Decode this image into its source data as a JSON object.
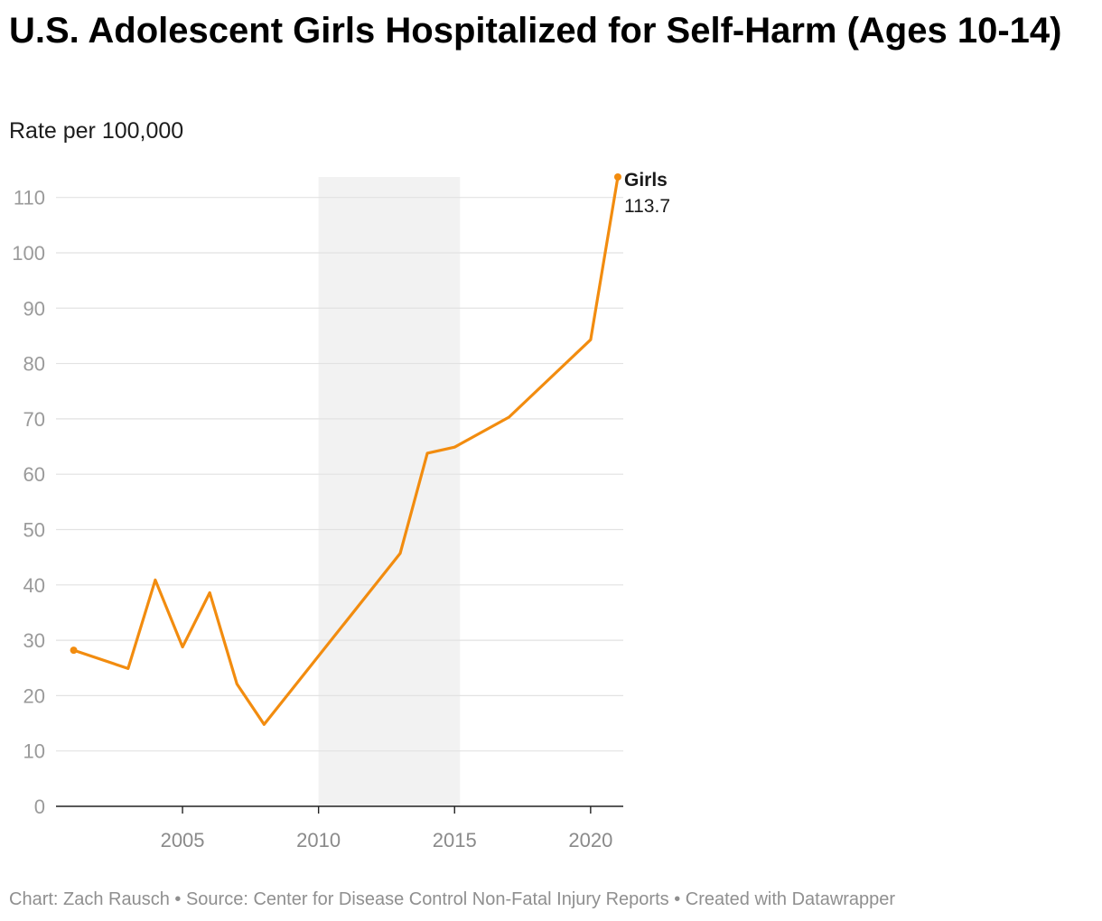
{
  "title": "U.S. Adolescent Girls Hospitalized for Self-Harm (Ages 10-14)",
  "subtitle": "Rate per 100,000",
  "footer": "Chart: Zach Rausch • Source: Center for Disease Control Non-Fatal Injury Reports • Created with Datawrapper",
  "colors": {
    "line": "#f28c0f",
    "shaded_band": "#f2f2f2",
    "grid": "#e2e2e2",
    "axis": "#222222"
  },
  "chart_data": {
    "type": "line",
    "title": "U.S. Adolescent Girls Hospitalized for Self-Harm (Ages 10-14)",
    "subtitle": "Rate per 100,000",
    "xlim": [
      2000.35,
      2021.2
    ],
    "ylim": [
      0,
      113.7
    ],
    "x_ticks": [
      2005,
      2010,
      2015,
      2020
    ],
    "y_ticks": [
      0,
      10,
      20,
      30,
      40,
      50,
      60,
      70,
      80,
      90,
      100,
      110
    ],
    "grid": "horizontal",
    "shaded_band": [
      2010,
      2015.2
    ],
    "series": [
      {
        "name": "Girls",
        "label_value": "113.7",
        "x": [
          2001,
          2003,
          2004,
          2005,
          2006,
          2007,
          2008,
          2013,
          2014,
          2015,
          2017,
          2020,
          2021
        ],
        "y": [
          28.2,
          24.9,
          40.9,
          28.8,
          38.6,
          22.1,
          14.8,
          45.7,
          63.8,
          64.9,
          70.3,
          84.3,
          113.7
        ]
      }
    ]
  }
}
